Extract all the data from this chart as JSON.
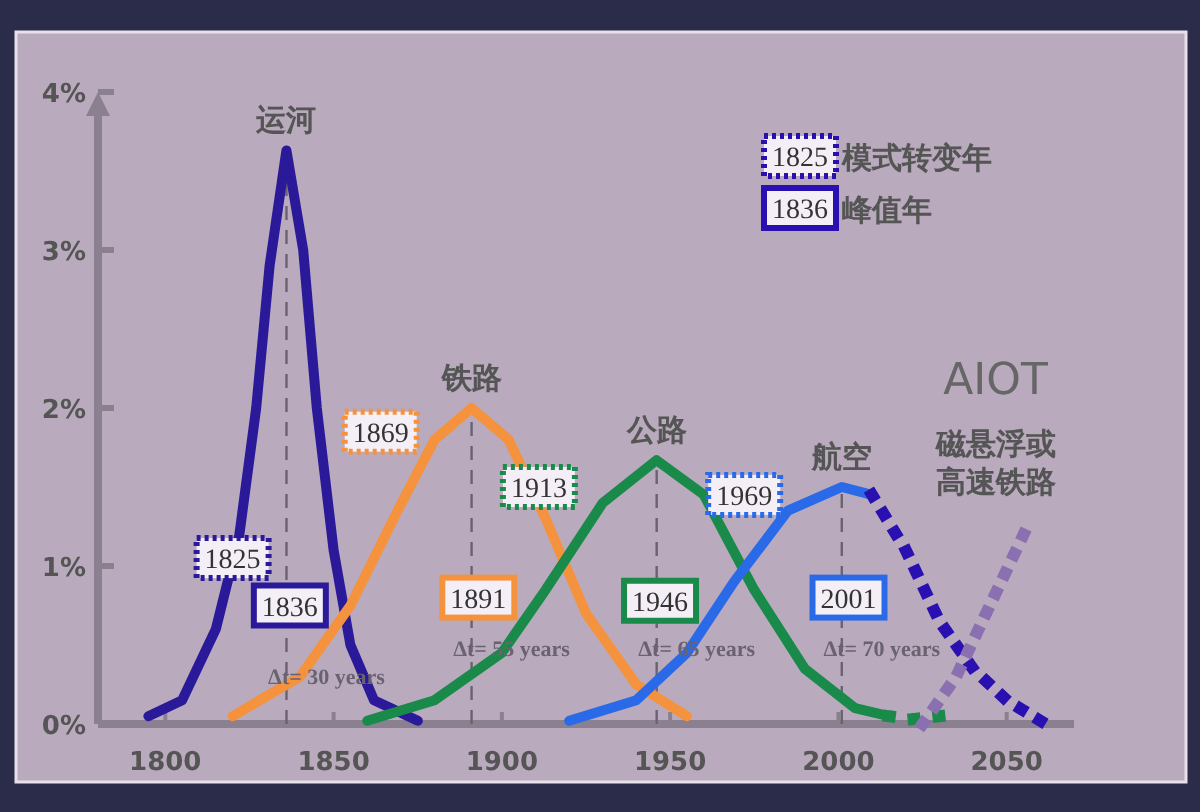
{
  "chart_data": {
    "type": "line",
    "xlim": [
      1780,
      2070
    ],
    "ylim": [
      0,
      4
    ],
    "xticks": [
      1800,
      1850,
      1900,
      1950,
      2000,
      2050
    ],
    "yticks": [
      {
        "value": 0,
        "label": "0%"
      },
      {
        "value": 1,
        "label": "1%"
      },
      {
        "value": 2,
        "label": "2%"
      },
      {
        "value": 3,
        "label": "3%"
      },
      {
        "value": 4,
        "label": "4%"
      }
    ],
    "grid": false,
    "marker": "none",
    "series": [
      {
        "name": "运河",
        "color": "#2a1a9a",
        "line_style": "solid",
        "x": [
          1795,
          1805,
          1815,
          1822,
          1827,
          1831,
          1836,
          1841,
          1845,
          1850,
          1855,
          1862,
          1875
        ],
        "values": [
          0.05,
          0.15,
          0.6,
          1.2,
          2.0,
          2.9,
          3.63,
          3.0,
          2.0,
          1.1,
          0.5,
          0.15,
          0.02
        ]
      },
      {
        "name": "铁路",
        "color": "#f5923e",
        "line_style": "solid",
        "x": [
          1820,
          1840,
          1855,
          1869,
          1880,
          1891,
          1902,
          1913,
          1925,
          1940,
          1955
        ],
        "values": [
          0.05,
          0.3,
          0.75,
          1.35,
          1.8,
          2.0,
          1.8,
          1.3,
          0.7,
          0.25,
          0.05
        ]
      },
      {
        "name": "公路",
        "color": "#1a8a4a",
        "line_style": "solid",
        "x": [
          1860,
          1880,
          1900,
          1913,
          1930,
          1946,
          1960,
          1975,
          1990,
          2005,
          2015
        ],
        "values": [
          0.02,
          0.15,
          0.45,
          0.85,
          1.4,
          1.67,
          1.45,
          0.85,
          0.35,
          0.1,
          0.05
        ]
      },
      {
        "color": "#1a8a4a",
        "line_style": "dotted",
        "x": [
          2015,
          2022,
          2030
        ],
        "values": [
          0.05,
          0.03,
          0.05
        ]
      },
      {
        "name": "航空",
        "color": "#2a6ae8",
        "line_style": "solid",
        "x": [
          1920,
          1940,
          1955,
          1969,
          1985,
          2001,
          2010
        ],
        "values": [
          0.02,
          0.15,
          0.45,
          0.9,
          1.35,
          1.5,
          1.45
        ]
      },
      {
        "color": "#2a10b0",
        "line_style": "dotted",
        "x": [
          2010,
          2020,
          2030,
          2040,
          2050,
          2060
        ],
        "values": [
          1.45,
          1.1,
          0.65,
          0.35,
          0.15,
          0.02
        ]
      },
      {
        "name": "磁悬浮或高速铁路",
        "color": "#8a70b0",
        "line_style": "dotted",
        "x": [
          2025,
          2035,
          2045,
          2055
        ],
        "values": [
          0.0,
          0.3,
          0.75,
          1.2
        ]
      }
    ],
    "ref_lines": [
      {
        "axis": "x",
        "value": 1836,
        "line_style": "dashed"
      },
      {
        "axis": "x",
        "value": 1891,
        "line_style": "dashed"
      },
      {
        "axis": "x",
        "value": 1946,
        "line_style": "dashed"
      },
      {
        "axis": "x",
        "value": 2001,
        "line_style": "dashed"
      }
    ],
    "annotations": [
      "1825",
      "模式转变年",
      "1836",
      "峰值年",
      "AIOT",
      "Δt= 30 years",
      "Δt= 55 years",
      "Δt= 65 years",
      "Δt= 70 years",
      {
        "text": "1825",
        "x": 1820,
        "y": 1.05
      },
      {
        "text": "1836",
        "x": 1837,
        "y": 0.75
      },
      {
        "text": "1869",
        "x": 1864,
        "y": 1.85
      },
      {
        "text": "1891",
        "x": 1893,
        "y": 0.8
      },
      {
        "text": "1913",
        "x": 1911,
        "y": 1.5
      },
      {
        "text": "1946",
        "x": 1947,
        "y": 0.78
      },
      {
        "text": "1969",
        "x": 1972,
        "y": 1.45
      },
      {
        "text": "2001",
        "x": 2003,
        "y": 0.8
      }
    ]
  }
}
